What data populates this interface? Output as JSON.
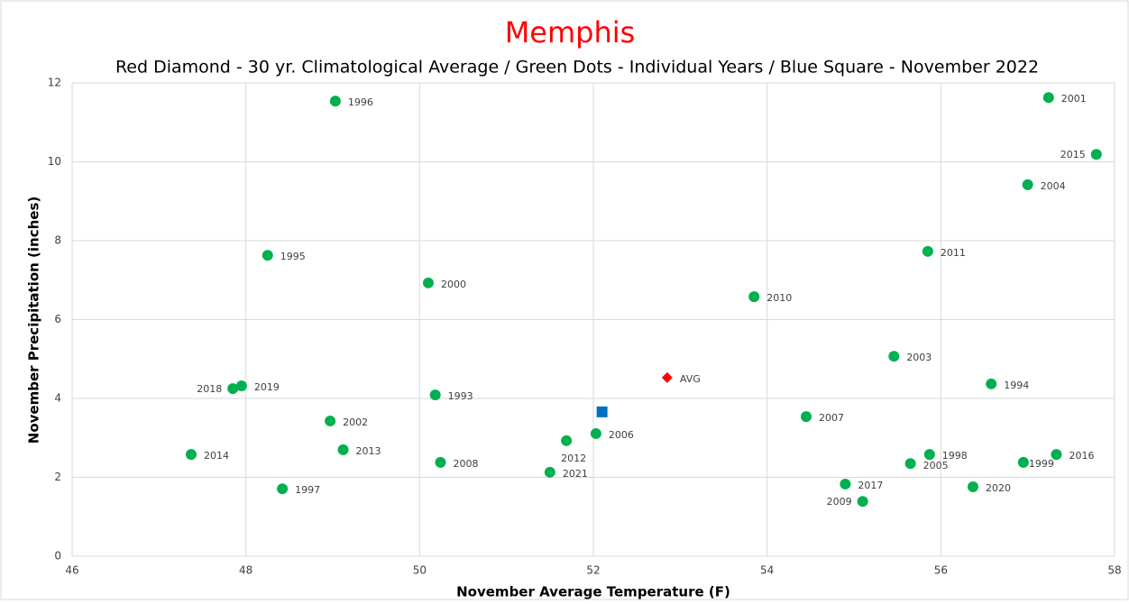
{
  "chart_data": {
    "type": "scatter",
    "title": "Memphis",
    "subtitle": "Red Diamond - 30 yr. Climatological Average / Green Dots - Individual Years / Blue Square - November 2022",
    "x_label": "November Average Temperature (F)",
    "y_label": "November Precipitation (inches)",
    "xlim": [
      46,
      58
    ],
    "xticks": [
      46,
      48,
      50,
      52,
      54,
      56,
      58
    ],
    "ylim": [
      0,
      12
    ],
    "yticks": [
      0,
      2,
      4,
      6,
      8,
      10,
      12
    ],
    "grid": true,
    "series": [
      {
        "color": "#00b050",
        "marker": "circle",
        "labels": [
          "1996",
          "2001",
          "2015",
          "2004",
          "2011",
          "1995",
          "2000",
          "2010",
          "2003",
          "1994",
          "2018",
          "2019",
          "1993",
          "2007",
          "2002",
          "2006",
          "2012",
          "2013",
          "2014",
          "1998",
          "2016",
          "2008",
          "1999",
          "2005",
          "2021",
          "2017",
          "2020",
          "1997",
          "2009"
        ],
        "x": [
          49.03,
          57.24,
          57.79,
          57.0,
          55.85,
          48.25,
          50.1,
          53.85,
          55.46,
          56.58,
          47.85,
          47.95,
          50.18,
          54.45,
          48.97,
          52.03,
          51.69,
          49.12,
          47.37,
          55.87,
          57.33,
          50.24,
          56.95,
          55.65,
          51.5,
          54.9,
          56.37,
          48.42,
          55.1
        ],
        "values": [
          11.54,
          11.63,
          10.19,
          9.42,
          7.73,
          7.63,
          6.93,
          6.58,
          5.07,
          4.37,
          4.25,
          4.32,
          4.09,
          3.54,
          3.43,
          3.11,
          2.93,
          2.7,
          2.58,
          2.58,
          2.58,
          2.38,
          2.38,
          2.35,
          2.13,
          1.83,
          1.76,
          1.71,
          1.39
        ]
      },
      {
        "color": "#ff0000",
        "marker": "diamond",
        "labels": [
          "AVG"
        ],
        "x": [
          52.85
        ],
        "values": [
          4.53
        ]
      },
      {
        "color": "#0070c0",
        "marker": "square",
        "x": [
          52.1
        ],
        "values": [
          3.66
        ]
      }
    ]
  }
}
